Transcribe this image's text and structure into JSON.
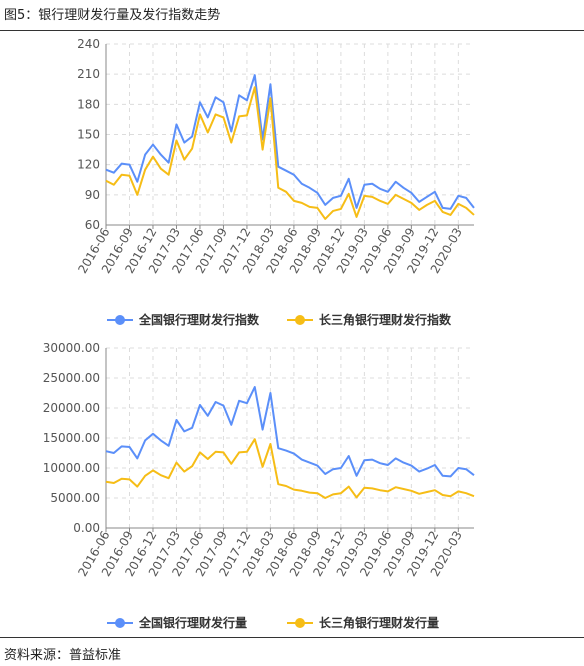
{
  "figure": {
    "title": "图5：银行理财发行量及发行指数走势",
    "source": "资料来源：普益标准"
  },
  "colors": {
    "national": "#5b8ff9",
    "yrd": "#f6bd16"
  },
  "chart_data": [
    {
      "type": "line",
      "title": "",
      "xlabel": "",
      "ylabel": "",
      "ylim": [
        60,
        240
      ],
      "yticks": [
        "60",
        "90",
        "120",
        "150",
        "180",
        "210",
        "240"
      ],
      "xticks": [
        "2016-06",
        "2016-09",
        "2016-12",
        "2017-03",
        "2017-06",
        "2017-09",
        "2017-12",
        "2018-03",
        "2018-06",
        "2018-09",
        "2018-12",
        "2019-03",
        "2019-06",
        "2019-09",
        "2019-12",
        "2020-03"
      ],
      "grid": true,
      "legend_position": "bottom",
      "x": [
        "2016-06",
        "2016-07",
        "2016-08",
        "2016-09",
        "2016-10",
        "2016-11",
        "2016-12",
        "2017-01",
        "2017-02",
        "2017-03",
        "2017-04",
        "2017-05",
        "2017-06",
        "2017-07",
        "2017-08",
        "2017-09",
        "2017-10",
        "2017-11",
        "2017-12",
        "2018-01",
        "2018-02",
        "2018-03",
        "2018-04",
        "2018-05",
        "2018-06",
        "2018-07",
        "2018-08",
        "2018-09",
        "2018-10",
        "2018-11",
        "2018-12",
        "2019-01",
        "2019-02",
        "2019-03",
        "2019-04",
        "2019-05",
        "2019-06",
        "2019-07",
        "2019-08",
        "2019-09",
        "2019-10",
        "2019-11",
        "2019-12",
        "2020-01",
        "2020-02",
        "2020-03",
        "2020-04",
        "2020-05"
      ],
      "series": [
        {
          "name": "全国银行理财发行指数",
          "values": [
            115,
            112,
            121,
            120,
            103,
            130,
            140,
            130,
            122,
            160,
            142,
            148,
            182,
            167,
            187,
            182,
            153,
            189,
            184,
            209,
            145,
            200,
            118,
            114,
            110,
            101,
            97,
            92,
            80,
            87,
            89,
            106,
            77,
            100,
            101,
            96,
            93,
            103,
            97,
            92,
            83,
            88,
            93,
            77,
            76,
            89,
            87,
            77
          ]
        },
        {
          "name": "长三角银行理财发行指数",
          "values": [
            104,
            100,
            110,
            109,
            90,
            115,
            128,
            116,
            110,
            144,
            125,
            136,
            170,
            152,
            170,
            167,
            142,
            168,
            169,
            197,
            135,
            186,
            97,
            93,
            84,
            82,
            78,
            77,
            66,
            74,
            76,
            91,
            68,
            89,
            88,
            84,
            81,
            90,
            86,
            82,
            75,
            80,
            84,
            73,
            70,
            81,
            77,
            70
          ]
        }
      ]
    },
    {
      "type": "line",
      "title": "",
      "xlabel": "",
      "ylabel": "",
      "ylim": [
        0,
        30000
      ],
      "yticks": [
        "0.00",
        "5000.00",
        "10000.00",
        "15000.00",
        "20000.00",
        "25000.00",
        "30000.00"
      ],
      "xticks": [
        "2016-06",
        "2016-09",
        "2016-12",
        "2017-03",
        "2017-06",
        "2017-09",
        "2017-12",
        "2018-03",
        "2018-06",
        "2018-09",
        "2018-12",
        "2019-03",
        "2019-06",
        "2019-09",
        "2019-12",
        "2020-03"
      ],
      "grid": true,
      "legend_position": "bottom",
      "x": [
        "2016-06",
        "2016-07",
        "2016-08",
        "2016-09",
        "2016-10",
        "2016-11",
        "2016-12",
        "2017-01",
        "2017-02",
        "2017-03",
        "2017-04",
        "2017-05",
        "2017-06",
        "2017-07",
        "2017-08",
        "2017-09",
        "2017-10",
        "2017-11",
        "2017-12",
        "2018-01",
        "2018-02",
        "2018-03",
        "2018-04",
        "2018-05",
        "2018-06",
        "2018-07",
        "2018-08",
        "2018-09",
        "2018-10",
        "2018-11",
        "2018-12",
        "2019-01",
        "2019-02",
        "2019-03",
        "2019-04",
        "2019-05",
        "2019-06",
        "2019-07",
        "2019-08",
        "2019-09",
        "2019-10",
        "2019-11",
        "2019-12",
        "2020-01",
        "2020-02",
        "2020-03",
        "2020-04",
        "2020-05"
      ],
      "series": [
        {
          "name": "全国银行理财发行量",
          "values": [
            12800,
            12500,
            13600,
            13500,
            11600,
            14600,
            15700,
            14600,
            13700,
            18000,
            16100,
            16700,
            20500,
            18700,
            21000,
            20400,
            17200,
            21200,
            20800,
            23500,
            16400,
            22500,
            13300,
            12900,
            12400,
            11400,
            10900,
            10400,
            9000,
            9800,
            10000,
            12000,
            8700,
            11300,
            11400,
            10800,
            10500,
            11600,
            10900,
            10400,
            9400,
            9900,
            10500,
            8700,
            8600,
            10000,
            9800,
            8800
          ]
        },
        {
          "name": "长三角银行理财发行量",
          "values": [
            7700,
            7500,
            8200,
            8100,
            6900,
            8700,
            9600,
            8800,
            8300,
            10900,
            9400,
            10300,
            12600,
            11500,
            12700,
            12600,
            10700,
            12600,
            12700,
            14800,
            10200,
            14000,
            7300,
            7000,
            6400,
            6200,
            5900,
            5800,
            5000,
            5600,
            5800,
            6900,
            5100,
            6700,
            6600,
            6300,
            6100,
            6800,
            6500,
            6200,
            5700,
            6000,
            6300,
            5500,
            5300,
            6100,
            5800,
            5300
          ]
        }
      ]
    }
  ]
}
